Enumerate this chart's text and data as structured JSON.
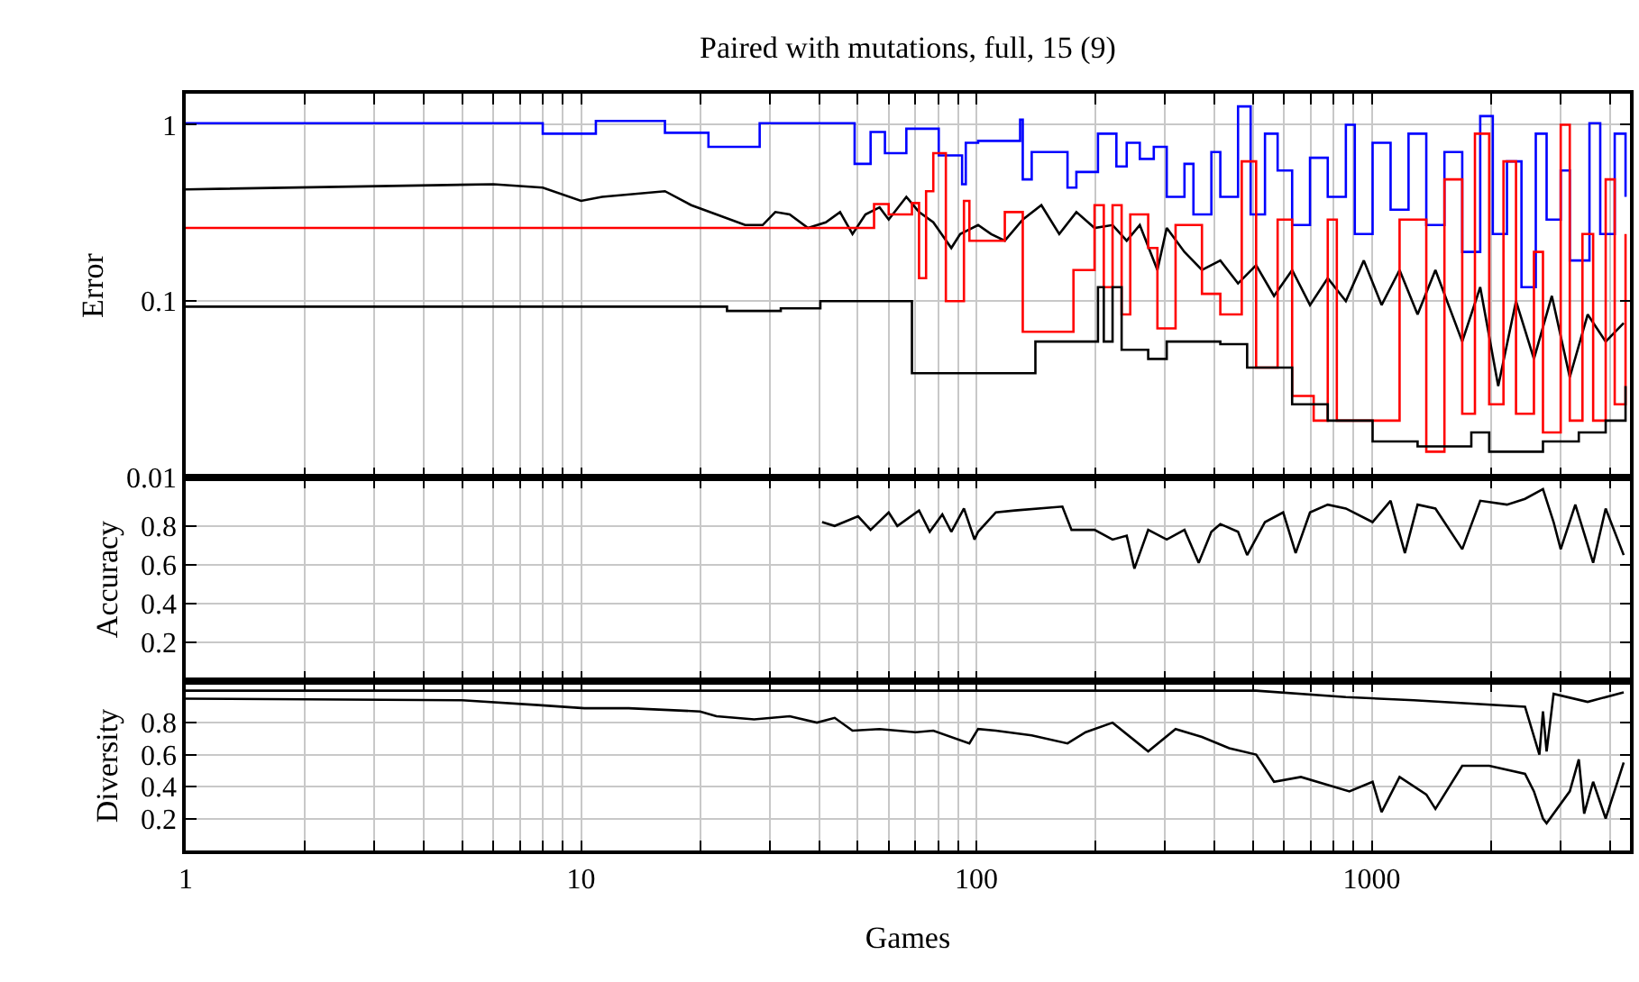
{
  "chart_data": [
    {
      "type": "line",
      "title": "Paired with mutations, full, 15 (9)",
      "ylabel": "Error",
      "log": "xy",
      "grid": true,
      "tick_labels": "y",
      "xlim": [
        1,
        4500
      ],
      "xticks": [
        1,
        {
          "value": 2,
          "label": null
        },
        {
          "value": 3,
          "label": null
        },
        {
          "value": 4,
          "label": null
        },
        {
          "value": 5,
          "label": null
        },
        {
          "value": 6,
          "label": null
        },
        {
          "value": 7,
          "label": null
        },
        {
          "value": 8,
          "label": null
        },
        {
          "value": 9,
          "label": null
        },
        10,
        {
          "value": 20,
          "label": null
        },
        {
          "value": 30,
          "label": null
        },
        {
          "value": 40,
          "label": null
        },
        {
          "value": 50,
          "label": null
        },
        {
          "value": 60,
          "label": null
        },
        {
          "value": 70,
          "label": null
        },
        {
          "value": 80,
          "label": null
        },
        {
          "value": 90,
          "label": null
        },
        100,
        {
          "value": 200,
          "label": null
        },
        {
          "value": 300,
          "label": null
        },
        {
          "value": 400,
          "label": null
        },
        {
          "value": 500,
          "label": null
        },
        {
          "value": 600,
          "label": null
        },
        {
          "value": 700,
          "label": null
        },
        {
          "value": 800,
          "label": null
        },
        {
          "value": 900,
          "label": null
        },
        1000,
        {
          "value": 2000,
          "label": null
        },
        {
          "value": 3000,
          "label": null
        },
        {
          "value": 4000,
          "label": null
        }
      ],
      "ylim": [
        0.01,
        1.5
      ],
      "yticks": [
        0.01,
        0.1,
        1
      ],
      "series": [
        {
          "type": "step",
          "color": "#0000ff",
          "x": [
            1,
            8.0,
            10.9,
            16.3,
            21,
            28.3,
            49.2,
            54,
            58.7,
            66.5,
            80.3,
            92,
            94,
            101,
            129,
            131,
            138,
            170,
            179,
            203,
            226,
            240,
            259,
            281,
            303,
            336,
            354,
            393,
            414,
            459,
            494,
            537,
            578,
            629,
            698,
            774,
            860,
            906,
            1005,
            1116,
            1239,
            1374,
            1527,
            1694,
            1881,
            2024,
            2198,
            2392,
            2600,
            2769,
            3006,
            3169,
            3554,
            3784,
            4117,
            4385
          ],
          "values": [
            1.02,
            0.89,
            1.05,
            0.9,
            0.75,
            1.02,
            0.6,
            0.91,
            0.69,
            0.95,
            0.67,
            0.46,
            0.79,
            0.81,
            1.07,
            0.49,
            0.7,
            0.44,
            0.54,
            0.89,
            0.58,
            0.79,
            0.64,
            0.75,
            0.39,
            0.6,
            0.31,
            0.7,
            0.39,
            1.27,
            0.31,
            0.89,
            0.55,
            0.27,
            0.65,
            0.39,
            1.0,
            0.24,
            0.79,
            0.33,
            0.89,
            0.27,
            0.7,
            0.19,
            1.12,
            0.24,
            0.62,
            0.12,
            0.89,
            0.29,
            0.55,
            0.17,
            1.02,
            0.24,
            0.89,
            0.39
          ]
        },
        {
          "type": "line",
          "color": "#000000",
          "x": [
            1,
            6.0,
            8.0,
            10,
            11.3,
            16.3,
            19,
            22,
            26,
            28.8,
            31,
            33.7,
            37.5,
            41.6,
            45.2,
            48.6,
            52.4,
            56.9,
            60,
            66.5,
            71.6,
            77.8,
            86.4,
            91,
            101,
            109,
            118,
            131,
            146,
            162,
            179,
            199,
            221,
            240,
            259,
            287,
            303,
            336,
            372,
            414,
            459,
            510,
            566,
            629,
            698,
            774,
            860,
            955,
            1059,
            1176,
            1306,
            1449,
            1694,
            1881,
            2089,
            2317,
            2572,
            2855,
            3169,
            3517,
            3906,
            4338
          ],
          "values": [
            0.43,
            0.46,
            0.44,
            0.37,
            0.39,
            0.42,
            0.35,
            0.31,
            0.27,
            0.27,
            0.32,
            0.31,
            0.26,
            0.28,
            0.32,
            0.24,
            0.31,
            0.34,
            0.29,
            0.39,
            0.32,
            0.28,
            0.2,
            0.24,
            0.27,
            0.24,
            0.22,
            0.29,
            0.35,
            0.24,
            0.32,
            0.26,
            0.27,
            0.22,
            0.27,
            0.15,
            0.26,
            0.19,
            0.15,
            0.17,
            0.126,
            0.16,
            0.107,
            0.15,
            0.095,
            0.135,
            0.1,
            0.17,
            0.095,
            0.15,
            0.084,
            0.15,
            0.059,
            0.12,
            0.033,
            0.1,
            0.047,
            0.107,
            0.037,
            0.084,
            0.059,
            0.075
          ]
        },
        {
          "type": "step",
          "color": "#ff0000",
          "x": [
            1,
            55.1,
            60,
            68.7,
            71.6,
            74.6,
            77.8,
            83.7,
            93,
            96,
            118,
            131,
            176,
            199,
            210,
            221,
            233,
            245,
            272,
            287,
            319,
            372,
            414,
            469,
            510,
            578,
            629,
            713,
            774,
            816,
            1176,
            1374,
            1527,
            1694,
            1824,
            1982,
            2154,
            2317,
            2572,
            2711,
            3006,
            3169,
            3412,
            3631,
            3906,
            4117,
            4385
          ],
          "values": [
            0.26,
            0.355,
            0.31,
            0.36,
            0.135,
            0.42,
            0.69,
            0.1,
            0.37,
            0.22,
            0.32,
            0.067,
            0.15,
            0.35,
            0.12,
            0.35,
            0.084,
            0.31,
            0.2,
            0.07,
            0.27,
            0.11,
            0.084,
            0.62,
            0.042,
            0.29,
            0.029,
            0.021,
            0.29,
            0.021,
            0.29,
            0.014,
            0.49,
            0.023,
            0.89,
            0.026,
            0.62,
            0.023,
            0.19,
            0.018,
            1.0,
            0.021,
            0.24,
            0.021,
            0.49,
            0.026,
            0.24
          ]
        },
        {
          "type": "step",
          "color": "#000000",
          "x": [
            1,
            23.4,
            32,
            40.3,
            68.7,
            141,
            203,
            210,
            221,
            233,
            272,
            303,
            414,
            484,
            629,
            774,
            1005,
            1306,
            1786,
            1982,
            2711,
            3340,
            3906,
            4385
          ],
          "values": [
            0.093,
            0.088,
            0.091,
            0.1,
            0.039,
            0.059,
            0.12,
            0.059,
            0.12,
            0.053,
            0.047,
            0.059,
            0.057,
            0.042,
            0.026,
            0.021,
            0.016,
            0.015,
            0.018,
            0.014,
            0.016,
            0.018,
            0.021,
            0.033
          ]
        }
      ]
    },
    {
      "type": "line",
      "ylabel": "Accuracy",
      "log": "x",
      "grid": true,
      "tick_labels": "y",
      "xlim": [
        1,
        4500
      ],
      "xticks": [
        1,
        {
          "value": 2,
          "label": null
        },
        {
          "value": 3,
          "label": null
        },
        {
          "value": 4,
          "label": null
        },
        {
          "value": 5,
          "label": null
        },
        {
          "value": 6,
          "label": null
        },
        {
          "value": 7,
          "label": null
        },
        {
          "value": 8,
          "label": null
        },
        {
          "value": 9,
          "label": null
        },
        10,
        {
          "value": 20,
          "label": null
        },
        {
          "value": 30,
          "label": null
        },
        {
          "value": 40,
          "label": null
        },
        {
          "value": 50,
          "label": null
        },
        {
          "value": 60,
          "label": null
        },
        {
          "value": 70,
          "label": null
        },
        {
          "value": 80,
          "label": null
        },
        {
          "value": 90,
          "label": null
        },
        100,
        {
          "value": 200,
          "label": null
        },
        {
          "value": 300,
          "label": null
        },
        {
          "value": 400,
          "label": null
        },
        {
          "value": 500,
          "label": null
        },
        {
          "value": 600,
          "label": null
        },
        {
          "value": 700,
          "label": null
        },
        {
          "value": 800,
          "label": null
        },
        {
          "value": 900,
          "label": null
        },
        1000,
        {
          "value": 2000,
          "label": null
        },
        {
          "value": 3000,
          "label": null
        },
        {
          "value": 4000,
          "label": null
        }
      ],
      "ylim": [
        0,
        1.05
      ],
      "yticks": [
        0.2,
        0.4,
        0.6,
        0.8
      ],
      "series": [
        {
          "color": "#000000",
          "x": [
            40.7,
            43.8,
            50.2,
            54,
            60,
            63.1,
            71.6,
            76.2,
            82,
            86.4,
            93,
            98.9,
            101,
            112,
            125,
            165,
            174,
            199,
            221,
            240,
            251,
            272,
            303,
            336,
            365,
            393,
            414,
            459,
            484,
            537,
            597,
            642,
            698,
            774,
            860,
            1005,
            1116,
            1213,
            1306,
            1449,
            1694,
            1881,
            2198,
            2442,
            2711,
            2884,
            3006,
            3273,
            3631,
            3906,
            4338
          ],
          "values": [
            0.82,
            0.8,
            0.85,
            0.78,
            0.87,
            0.8,
            0.88,
            0.77,
            0.86,
            0.77,
            0.89,
            0.73,
            0.77,
            0.87,
            0.88,
            0.9,
            0.78,
            0.78,
            0.73,
            0.75,
            0.58,
            0.78,
            0.73,
            0.78,
            0.61,
            0.77,
            0.81,
            0.77,
            0.65,
            0.82,
            0.87,
            0.66,
            0.87,
            0.91,
            0.89,
            0.82,
            0.93,
            0.66,
            0.91,
            0.89,
            0.68,
            0.93,
            0.91,
            0.94,
            0.99,
            0.82,
            0.68,
            0.91,
            0.61,
            0.89,
            0.65
          ]
        }
      ]
    },
    {
      "type": "line",
      "ylabel": "Diversity",
      "xlabel": "Games",
      "log": "x",
      "grid": true,
      "xlim": [
        1,
        4500
      ],
      "xticks": [
        1,
        {
          "value": 2,
          "label": null
        },
        {
          "value": 3,
          "label": null
        },
        {
          "value": 4,
          "label": null
        },
        {
          "value": 5,
          "label": null
        },
        {
          "value": 6,
          "label": null
        },
        {
          "value": 7,
          "label": null
        },
        {
          "value": 8,
          "label": null
        },
        {
          "value": 9,
          "label": null
        },
        10,
        {
          "value": 20,
          "label": null
        },
        {
          "value": 30,
          "label": null
        },
        {
          "value": 40,
          "label": null
        },
        {
          "value": 50,
          "label": null
        },
        {
          "value": 60,
          "label": null
        },
        {
          "value": 70,
          "label": null
        },
        {
          "value": 80,
          "label": null
        },
        {
          "value": 90,
          "label": null
        },
        100,
        {
          "value": 200,
          "label": null
        },
        {
          "value": 300,
          "label": null
        },
        {
          "value": 400,
          "label": null
        },
        {
          "value": 500,
          "label": null
        },
        {
          "value": 600,
          "label": null
        },
        {
          "value": 700,
          "label": null
        },
        {
          "value": 800,
          "label": null
        },
        {
          "value": 900,
          "label": null
        },
        1000,
        {
          "value": 2000,
          "label": null
        },
        {
          "value": 3000,
          "label": null
        },
        {
          "value": 4000,
          "label": null
        }
      ],
      "ylim": [
        0,
        1.06
      ],
      "yticks": [
        0.2,
        0.4,
        0.6,
        0.8
      ],
      "series": [
        {
          "color": "#000000",
          "x": [
            1,
            510,
            860,
            1278,
            2442,
            2655,
            2711,
            2769,
            2884,
            3517,
            4338
          ],
          "values": [
            1.0,
            1.0,
            0.96,
            0.94,
            0.9,
            0.6,
            0.87,
            0.62,
            0.98,
            0.93,
            0.99
          ]
        },
        {
          "color": "#000000",
          "x": [
            1,
            5.0,
            7.8,
            10.2,
            13.2,
            20,
            22,
            27.4,
            33.7,
            39.5,
            43.8,
            48.6,
            56.9,
            70.1,
            77.8,
            96,
            101,
            112,
            138,
            170,
            189,
            221,
            272,
            319,
            372,
            436,
            510,
            566,
            662,
            878,
            1005,
            1059,
            1176,
            1374,
            1449,
            1694,
            1982,
            2442,
            2572,
            2711,
            2769,
            3169,
            3340,
            3446,
            3631,
            3906,
            4338
          ],
          "values": [
            0.95,
            0.94,
            0.91,
            0.89,
            0.89,
            0.87,
            0.84,
            0.82,
            0.84,
            0.8,
            0.83,
            0.75,
            0.76,
            0.74,
            0.75,
            0.67,
            0.76,
            0.75,
            0.72,
            0.67,
            0.74,
            0.8,
            0.62,
            0.76,
            0.71,
            0.64,
            0.6,
            0.43,
            0.46,
            0.37,
            0.43,
            0.24,
            0.46,
            0.35,
            0.26,
            0.53,
            0.53,
            0.48,
            0.37,
            0.2,
            0.17,
            0.37,
            0.57,
            0.23,
            0.43,
            0.2,
            0.55
          ]
        }
      ]
    }
  ]
}
